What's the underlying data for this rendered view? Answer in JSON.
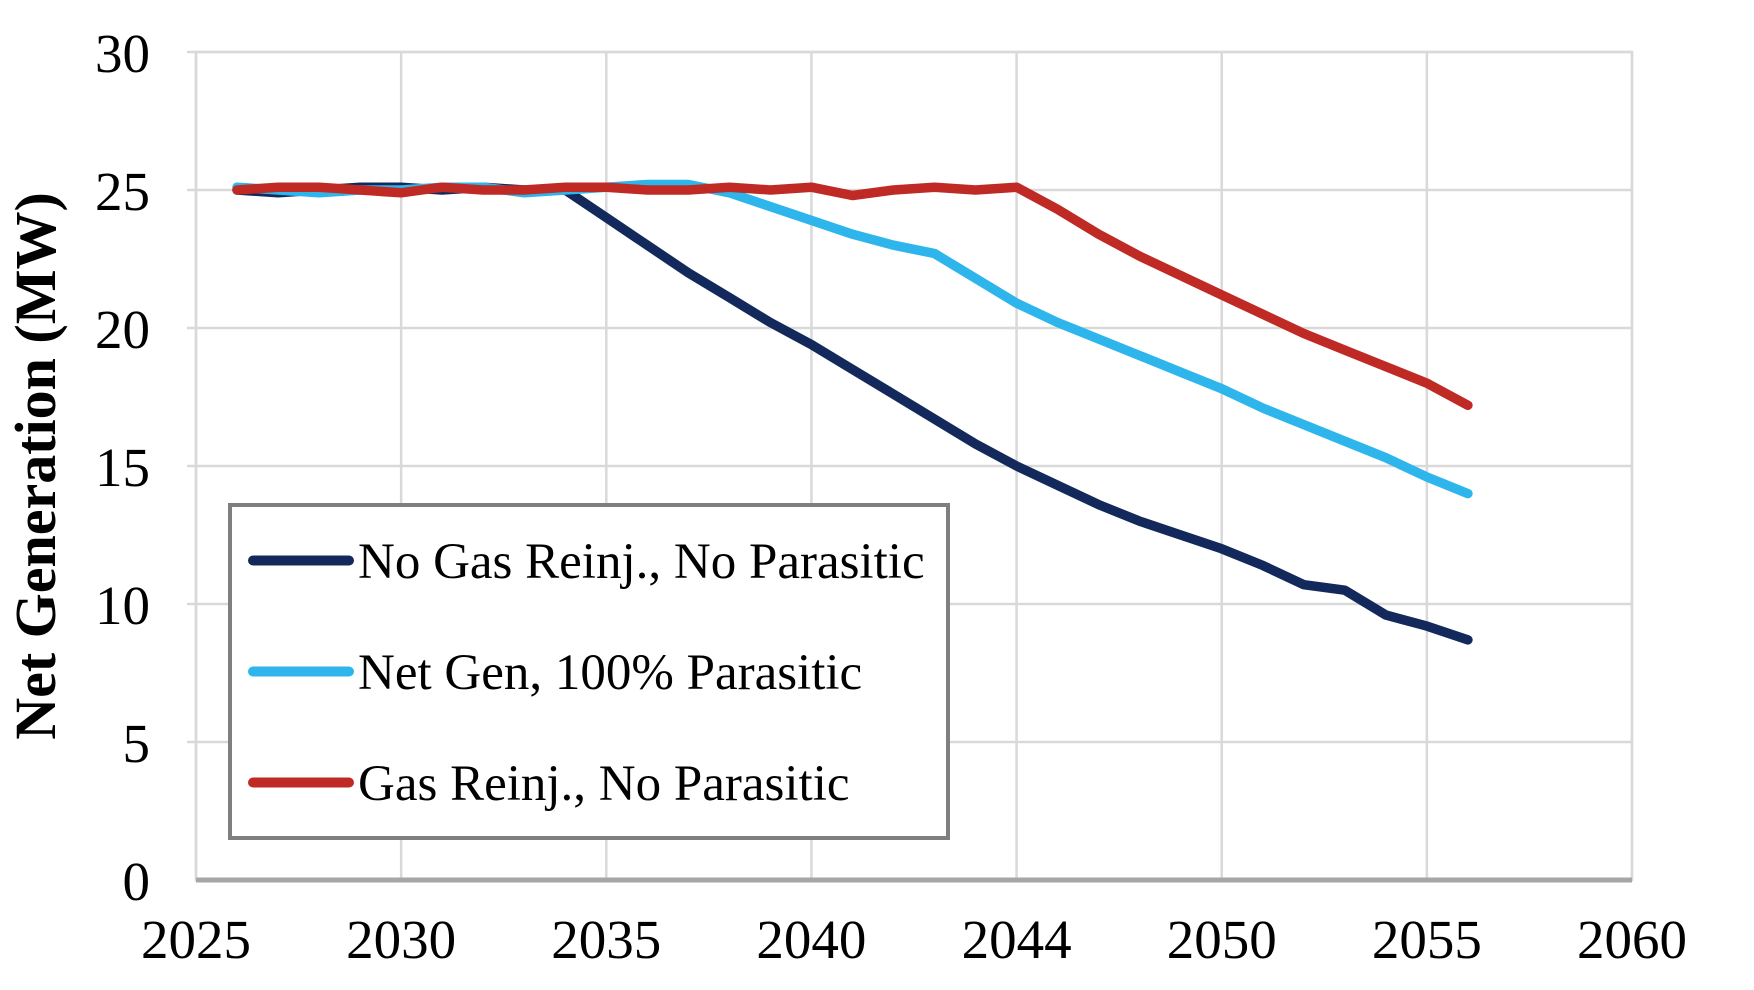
{
  "chart_data": {
    "type": "line",
    "title": "",
    "ylabel": "Net Generation (MW)",
    "xlabel": "",
    "ylim": [
      0,
      30
    ],
    "yticks": [
      0,
      5,
      10,
      15,
      20,
      25,
      30
    ],
    "xtick_labels": [
      "2025",
      "2030",
      "2035",
      "2040",
      "2044",
      "2050",
      "2055",
      "2060"
    ],
    "x_range_years": [
      2025,
      2060
    ],
    "grid": true,
    "legend_position": "inside-left-middle",
    "x": [
      2026,
      2027,
      2028,
      2029,
      2030,
      2031,
      2032,
      2033,
      2034,
      2035,
      2036,
      2037,
      2038,
      2039,
      2040,
      2041,
      2042,
      2043,
      2044,
      2045,
      2046,
      2047,
      2048,
      2049,
      2050,
      2051,
      2052,
      2053,
      2054,
      2055,
      2056
    ],
    "series": [
      {
        "name": "No Gas Reinj., No Parasitic",
        "color": "#13295B",
        "values": [
          25.0,
          24.9,
          25.0,
          25.1,
          25.1,
          25.0,
          25.1,
          25.0,
          25.0,
          24.0,
          23.0,
          22.0,
          21.1,
          20.2,
          19.4,
          18.5,
          17.6,
          16.7,
          15.8,
          15.0,
          14.3,
          13.6,
          13.0,
          12.5,
          12.0,
          11.4,
          10.7,
          10.5,
          9.6,
          9.2,
          8.7
        ]
      },
      {
        "name": "Net Gen, 100% Parasitic",
        "color": "#2EB6EC",
        "values": [
          25.1,
          25.0,
          24.9,
          25.0,
          25.0,
          25.1,
          25.1,
          24.9,
          25.0,
          25.1,
          25.2,
          25.2,
          24.9,
          24.4,
          23.9,
          23.4,
          23.0,
          22.7,
          21.8,
          20.9,
          20.2,
          19.6,
          19.0,
          18.4,
          17.8,
          17.1,
          16.5,
          15.9,
          15.3,
          14.6,
          14.0
        ]
      },
      {
        "name": "Gas Reinj., No Parasitic",
        "color": "#BF2A25",
        "values": [
          25.0,
          25.1,
          25.1,
          25.0,
          24.9,
          25.1,
          25.0,
          25.0,
          25.1,
          25.1,
          25.0,
          25.0,
          25.1,
          25.0,
          25.1,
          24.8,
          25.0,
          25.1,
          25.0,
          25.1,
          24.3,
          23.4,
          22.6,
          21.9,
          21.2,
          20.5,
          19.8,
          19.2,
          18.6,
          18.0,
          17.2
        ]
      }
    ]
  },
  "colors": {
    "background": "#FFFFFF",
    "gridline": "#D9D9D9",
    "axis_line": "#A6A6A6",
    "legend_border": "#7F7F7F",
    "legend_fill": "#FFFFFF",
    "text": "#000000"
  }
}
